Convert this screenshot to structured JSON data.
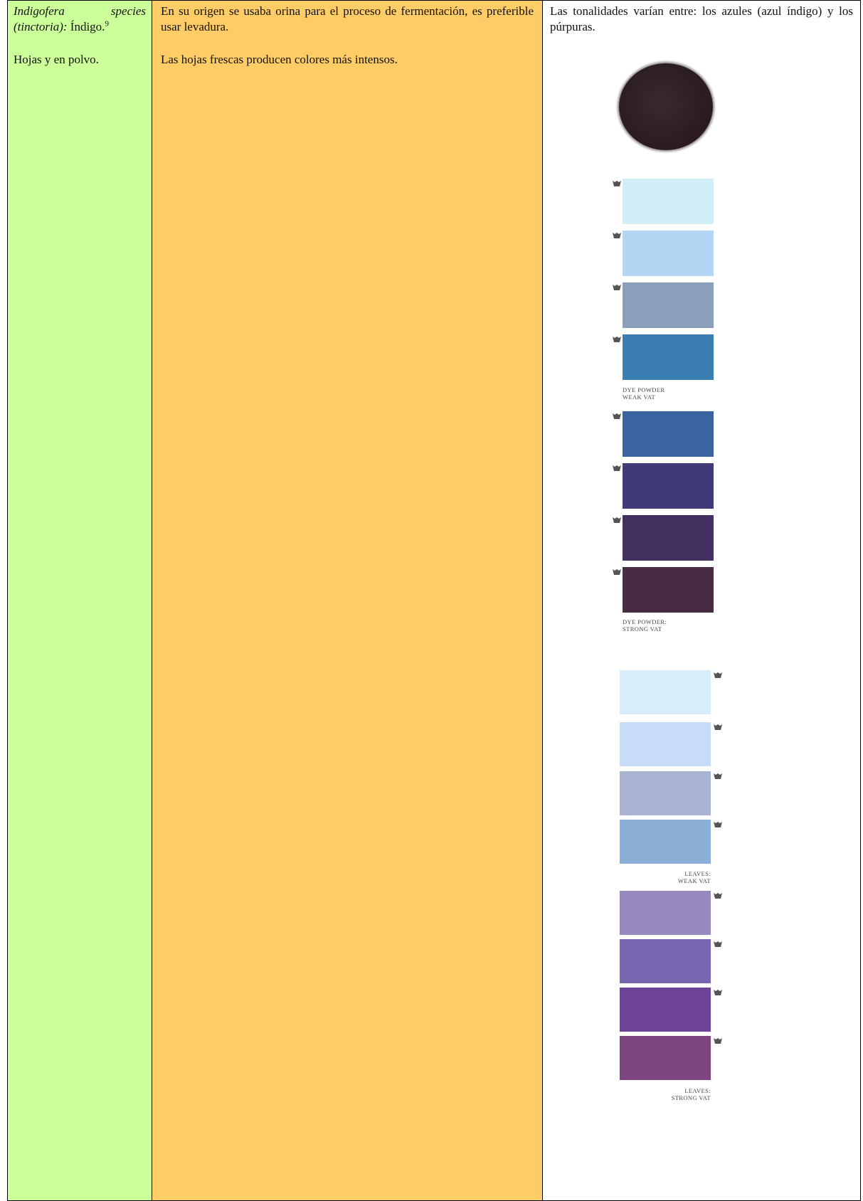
{
  "col1": {
    "species_italic": "Indigofera species",
    "species_sub_italic": "(tinctoria):",
    "common_name": " Índigo.",
    "footnote": "9",
    "parts": "Hojas y en polvo."
  },
  "col2": {
    "para1": "En su origen se usaba orina para el proceso de fermentación, es preferible usar levadura.",
    "para2": "Las hojas frescas producen colores más intensos."
  },
  "col3": {
    "text": "Las tonalidades varían entre: los azules (azul índigo) y los púrpuras."
  },
  "swatches": {
    "powder_color": "#2b1d22",
    "group_powder_weak": {
      "label_line1": "DYE POWDER",
      "label_line2": "WEAK VAT",
      "colors": [
        "#d3eef9",
        "#b3d6f4",
        "#8a9fba",
        "#3b7fb2"
      ]
    },
    "group_powder_strong": {
      "label_line1": "DYE POWDER:",
      "label_line2": "STRONG VAT",
      "colors": [
        "#3a64a0",
        "#3f3a78",
        "#443060",
        "#472c44"
      ]
    },
    "group_leaves_weak": {
      "label_line1": "LEAVES:",
      "label_line2": "WEAK VAT",
      "colors": [
        "#d8edfc",
        "#c7dcf6",
        "#a8b4d2",
        "#8cafd8"
      ]
    },
    "group_leaves_strong": {
      "label_line1": "LEAVES:",
      "label_line2": "STRONG VAT",
      "colors": [
        "#9889c1",
        "#7966b0",
        "#6e449a",
        "#7d4680"
      ]
    }
  }
}
